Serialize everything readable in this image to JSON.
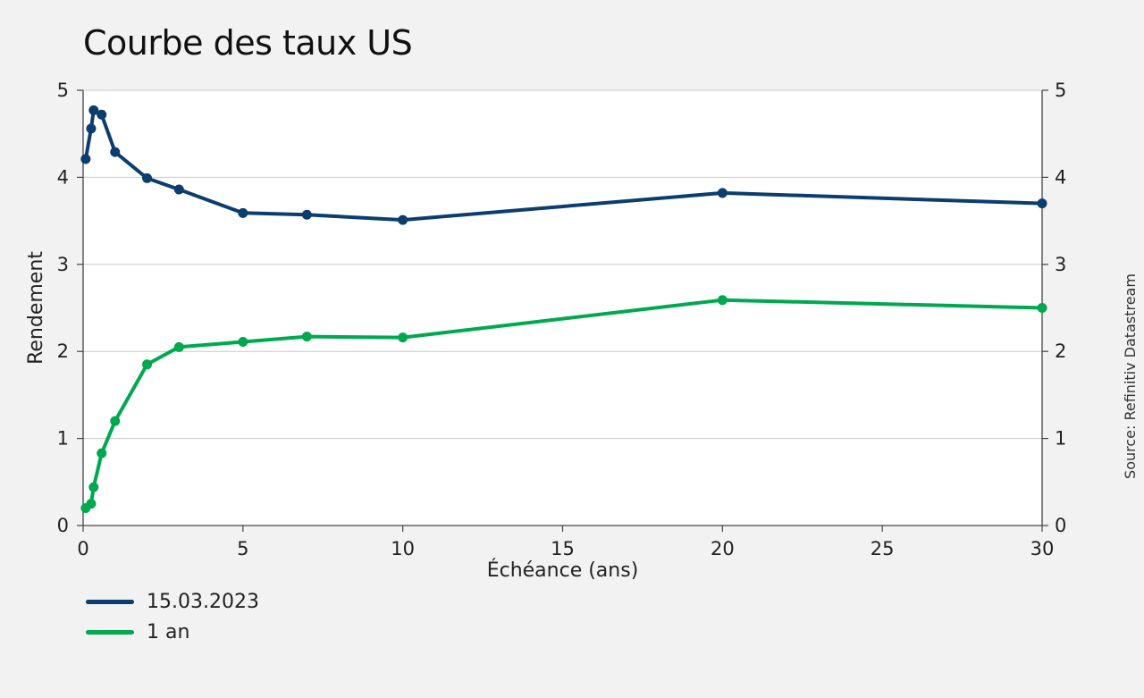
{
  "chart_data": {
    "type": "line",
    "title": "Courbe des taux US",
    "xlabel": "Échéance (ans)",
    "ylabel": "Rendement",
    "source": "Source: Refinitiv Datastream",
    "xlim": [
      0,
      30
    ],
    "ylim": [
      0,
      5
    ],
    "x_ticks": [
      "0",
      "5",
      "10",
      "15",
      "20",
      "25",
      "30"
    ],
    "y_ticks": [
      "0",
      "1",
      "2",
      "3",
      "4",
      "5"
    ],
    "grid": "horizontal",
    "legend_position": "bottom-left",
    "series": [
      {
        "name": "15.03.2023",
        "color": "#0b3d6e",
        "x": [
          0.08,
          0.25,
          0.33,
          0.58,
          1,
          2,
          3,
          5,
          7,
          10,
          20,
          30
        ],
        "values": [
          4.21,
          4.56,
          4.77,
          4.72,
          4.29,
          3.99,
          3.86,
          3.59,
          3.57,
          3.51,
          3.82,
          3.7
        ]
      },
      {
        "name": "1 an",
        "color": "#00a84f",
        "x": [
          0.08,
          0.25,
          0.33,
          0.58,
          1,
          2,
          3,
          5,
          7,
          10,
          20,
          30
        ],
        "values": [
          0.2,
          0.25,
          0.44,
          0.83,
          1.2,
          1.85,
          2.05,
          2.11,
          2.17,
          2.16,
          2.59,
          2.5
        ]
      }
    ]
  }
}
